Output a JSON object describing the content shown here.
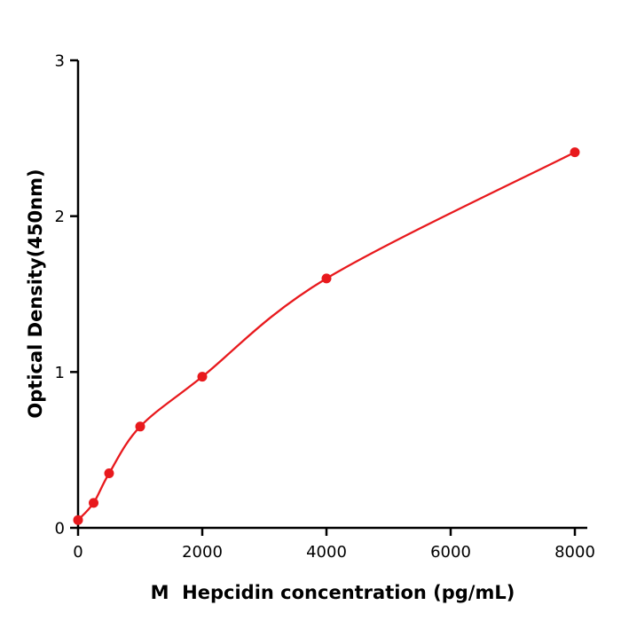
{
  "chart_data": {
    "type": "scatter",
    "title": "",
    "xlabel": "M  Hepcidin concentration (pg/mL)",
    "ylabel": "Optical Density(450nm)",
    "xlim": [
      0,
      8200
    ],
    "ylim": [
      0,
      3
    ],
    "xticks": [
      0,
      2000,
      4000,
      6000,
      8000
    ],
    "yticks": [
      0,
      1,
      2,
      3
    ],
    "points": [
      [
        0,
        0.05
      ],
      [
        250,
        0.16
      ],
      [
        500,
        0.35
      ],
      [
        1000,
        0.65
      ],
      [
        2000,
        0.97
      ],
      [
        4000,
        1.6
      ],
      [
        8000,
        2.41
      ]
    ],
    "series_note": "standard curve: red smooth fit line through red dot data points",
    "marker_color": "#e8191d",
    "line_color": "#e8191d",
    "axis_color": "#000000",
    "background": "#ffffff",
    "grid": false,
    "legend": null
  }
}
